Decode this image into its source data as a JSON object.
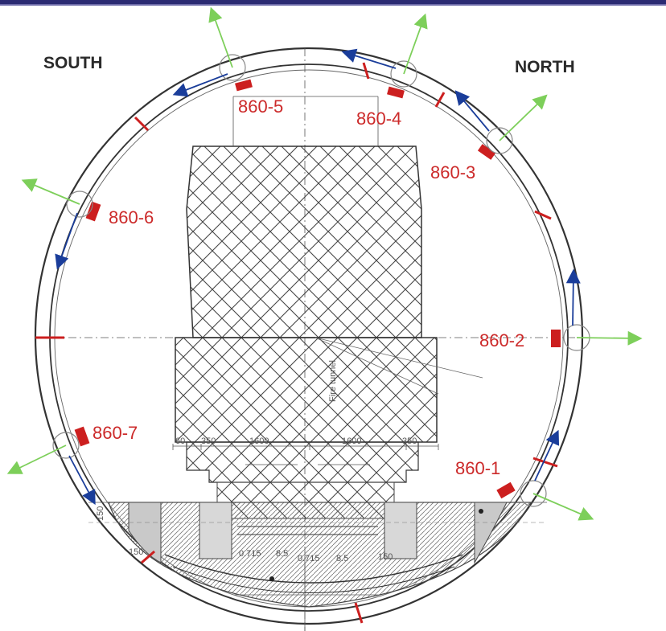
{
  "directions": {
    "south": "SOUTH",
    "north": "NORTH"
  },
  "sensors": [
    {
      "id": "860-1",
      "label": "860-1"
    },
    {
      "id": "860-2",
      "label": "860-2"
    },
    {
      "id": "860-3",
      "label": "860-3"
    },
    {
      "id": "860-4",
      "label": "860-4"
    },
    {
      "id": "860-5",
      "label": "860-5"
    },
    {
      "id": "860-6",
      "label": "860-6"
    },
    {
      "id": "860-7",
      "label": "860-7"
    }
  ],
  "dimensions": {
    "d1": "60",
    "d2": "350",
    "d3": "1600",
    "d4": "1600",
    "d5": "350",
    "d6": "0.715",
    "d7": "8.5",
    "d8": "0.715",
    "d9": "8.5",
    "d10": "150",
    "d11": "150",
    "d12": "150",
    "vertical_text": "Fire tunnel"
  },
  "colors": {
    "frame": "#2b2a72",
    "ring": "#333333",
    "sensor_marker": "#cc1f1f",
    "label": "#cc2a2a",
    "green_arrow": "#7dcf5a",
    "blue_arrow": "#1a3d9a"
  }
}
